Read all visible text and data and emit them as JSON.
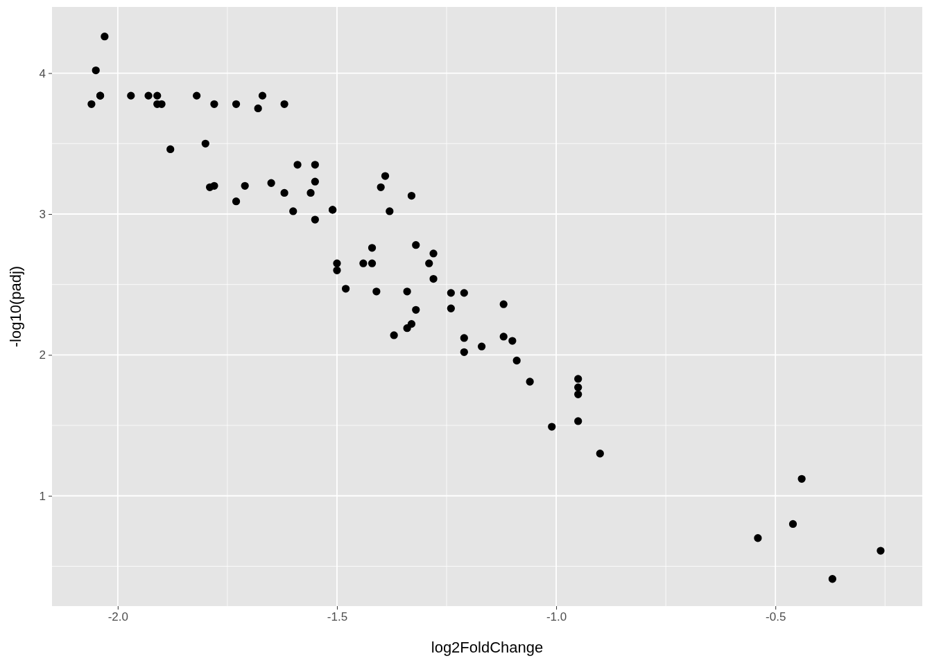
{
  "chart_data": {
    "type": "scatter",
    "xlabel": "log2FoldChange",
    "ylabel": "-log10(padj)",
    "xlim": [
      -2.15,
      -0.165
    ],
    "ylim": [
      0.217,
      4.47
    ],
    "xticks": [
      {
        "value": -2,
        "label": "-2.0"
      },
      {
        "value": -1.5,
        "label": "-1.5"
      },
      {
        "value": -1,
        "label": "-1.0"
      },
      {
        "value": -0.5,
        "label": "-0.5"
      }
    ],
    "yticks": [
      1,
      2,
      3,
      4
    ],
    "grid": true,
    "marker": "circle",
    "series": [
      {
        "color": "#000000",
        "x": [
          -2.06,
          -2.05,
          -2.03,
          -2.04,
          -2.04,
          -1.97,
          -1.93,
          -1.91,
          -1.91,
          -1.9,
          -1.88,
          -1.82,
          -1.8,
          -1.79,
          -1.78,
          -1.78,
          -1.73,
          -1.73,
          -1.71,
          -1.68,
          -1.67,
          -1.65,
          -1.62,
          -1.62,
          -1.6,
          -1.59,
          -1.56,
          -1.55,
          -1.55,
          -1.55,
          -1.51,
          -1.51,
          -1.5,
          -1.5,
          -1.48,
          -1.44,
          -1.42,
          -1.42,
          -1.41,
          -1.4,
          -1.39,
          -1.38,
          -1.37,
          -1.34,
          -1.34,
          -1.33,
          -1.33,
          -1.32,
          -1.32,
          -1.29,
          -1.28,
          -1.28,
          -1.24,
          -1.24,
          -1.21,
          -1.21,
          -1.21,
          -1.17,
          -1.12,
          -1.12,
          -1.1,
          -1.09,
          -1.06,
          -1.01,
          -0.95,
          -0.95,
          -0.95,
          -0.95,
          -0.9,
          -0.54,
          -0.46,
          -0.44,
          -0.37,
          -0.26
        ],
        "values": [
          3.78,
          4.02,
          4.26,
          3.84,
          3.84,
          3.84,
          3.84,
          3.84,
          3.78,
          3.78,
          3.46,
          3.84,
          3.5,
          3.19,
          3.2,
          3.78,
          3.78,
          3.09,
          3.2,
          3.75,
          3.84,
          3.22,
          3.15,
          3.78,
          3.02,
          3.35,
          3.15,
          3.23,
          2.96,
          3.35,
          3.03,
          3.03,
          2.65,
          2.6,
          2.47,
          2.65,
          2.76,
          2.65,
          2.45,
          3.19,
          3.27,
          3.02,
          2.14,
          2.45,
          2.19,
          3.13,
          2.22,
          2.32,
          2.78,
          2.65,
          2.72,
          2.54,
          2.44,
          2.33,
          2.02,
          2.44,
          2.12,
          2.06,
          2.36,
          2.13,
          2.1,
          1.96,
          1.81,
          1.49,
          1.83,
          1.77,
          1.72,
          1.53,
          1.3,
          0.7,
          0.8,
          1.12,
          0.41,
          0.61
        ]
      }
    ]
  }
}
